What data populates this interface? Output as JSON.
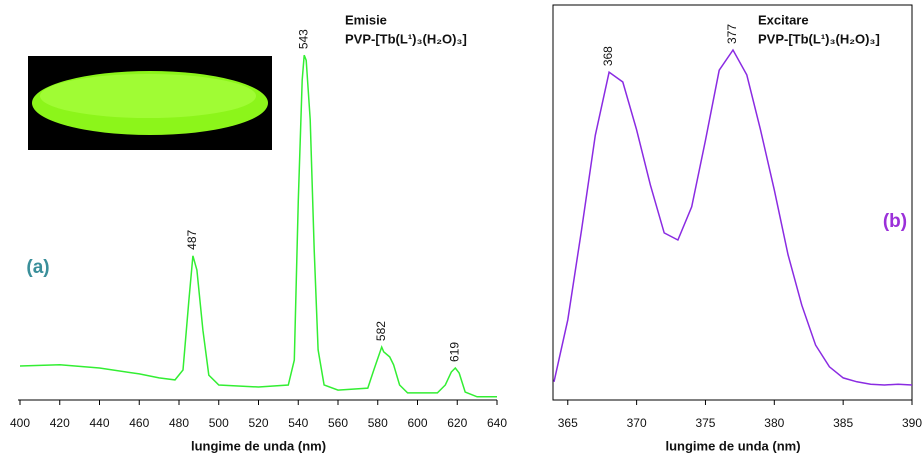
{
  "chart_data": [
    {
      "type": "line",
      "title": "Emisie",
      "subtitle": "PVP-[Tb(L¹)₃(H₂O)₃]",
      "panel_label": "(a)",
      "xlabel": "lungime de unda (nm)",
      "color": "#33ee33",
      "label_color": "#3a8f9a",
      "x": [
        400,
        420,
        440,
        460,
        470,
        478,
        482,
        485,
        487,
        489,
        492,
        495,
        500,
        520,
        535,
        538,
        540,
        542,
        543,
        544,
        546,
        548,
        550,
        553,
        560,
        575,
        578,
        582,
        583,
        586,
        588,
        591,
        595,
        610,
        614,
        617,
        619,
        621,
        624,
        630,
        640
      ],
      "values": [
        8.6,
        8.9,
        8.1,
        6.6,
        5.6,
        5.1,
        7.6,
        25.3,
        36.5,
        32.9,
        17.7,
        6.3,
        3.8,
        3.3,
        3.8,
        10.1,
        50.6,
        81,
        87.3,
        86,
        71,
        38,
        12.7,
        3.8,
        2.5,
        3,
        7.6,
        13.4,
        12.2,
        10.9,
        8.9,
        3.8,
        1.8,
        1.8,
        3.8,
        7.1,
        8.1,
        6.8,
        2,
        0.8,
        0.8
      ],
      "peak_labels": [
        487,
        543,
        582,
        619
      ],
      "xlim": [
        400,
        640
      ],
      "xticks": [
        400,
        420,
        440,
        460,
        480,
        500,
        520,
        540,
        560,
        580,
        600,
        620,
        640
      ],
      "ylim": [
        0,
        100
      ]
    },
    {
      "type": "line",
      "title": "Excitare",
      "subtitle": "PVP-[Tb(L¹)₃(H₂O)₃]",
      "panel_label": "(b)",
      "xlabel": "lungime de unda (nm)",
      "color": "#8a2be2",
      "label_color": "#9b30d9",
      "x": [
        364,
        365,
        366,
        367,
        368,
        369,
        370,
        371,
        372,
        373,
        374,
        375,
        376,
        377,
        378,
        379,
        380,
        381,
        382,
        383,
        384,
        385,
        386,
        387,
        388,
        389,
        390
      ],
      "values": [
        4.6,
        20.3,
        43,
        67,
        83,
        80.5,
        68.4,
        54.4,
        42.3,
        40.5,
        48.9,
        65.8,
        83.5,
        88.6,
        82.3,
        68.4,
        53.2,
        36.7,
        24,
        13.9,
        8.4,
        5.6,
        4.6,
        4,
        3.8,
        4,
        3.8
      ],
      "peak_labels": [
        368,
        377
      ],
      "xlim": [
        364,
        390
      ],
      "xticks": [
        365,
        370,
        375,
        380,
        385,
        390
      ],
      "ylim": [
        0,
        100
      ]
    }
  ]
}
